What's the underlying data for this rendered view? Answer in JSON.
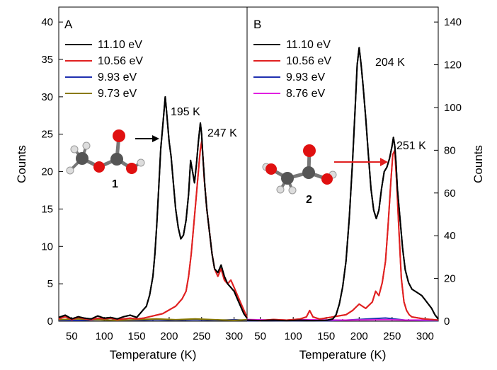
{
  "chart_data": [
    {
      "panel": "A",
      "type": "line",
      "xlabel": "Temperature (K)",
      "ylabel": "Counts",
      "xlim": [
        30,
        320
      ],
      "ylim": [
        0,
        42
      ],
      "xticks": [
        50,
        100,
        150,
        200,
        250,
        300
      ],
      "yticks": [
        0,
        5,
        10,
        15,
        20,
        25,
        30,
        35,
        40
      ],
      "y_axis_side": "left",
      "legend_position": "top-left",
      "series": [
        {
          "name": "11.10 eV",
          "color": "#000000",
          "x": [
            30,
            40,
            50,
            60,
            70,
            80,
            90,
            100,
            110,
            120,
            130,
            140,
            150,
            160,
            165,
            170,
            175,
            178,
            181,
            184,
            187,
            190,
            192,
            194,
            196,
            198,
            200,
            203,
            206,
            210,
            214,
            218,
            222,
            226,
            230,
            233,
            236,
            239,
            242,
            245,
            248,
            250,
            252,
            255,
            258,
            262,
            266,
            270,
            275,
            280,
            285,
            290,
            295,
            300,
            305,
            310,
            315,
            320
          ],
          "y": [
            0.5,
            0.8,
            0.3,
            0.6,
            0.4,
            0.3,
            0.7,
            0.4,
            0.5,
            0.3,
            0.6,
            0.8,
            0.5,
            1.5,
            2.0,
            3.5,
            6.0,
            9.0,
            13.0,
            18.0,
            23.0,
            26.0,
            28.0,
            30.0,
            28.0,
            26.0,
            24.0,
            22.0,
            19.0,
            15.0,
            12.5,
            11.0,
            11.5,
            13.5,
            17.0,
            21.5,
            20.0,
            18.5,
            21.0,
            24.0,
            26.5,
            25.0,
            22.0,
            18.0,
            15.0,
            12.0,
            9.0,
            7.0,
            6.5,
            7.5,
            6.0,
            5.0,
            4.5,
            4.0,
            3.0,
            2.0,
            1.0,
            0.4
          ]
        },
        {
          "name": "10.56 eV",
          "color": "#e02020",
          "x": [
            30,
            40,
            50,
            60,
            70,
            80,
            90,
            100,
            110,
            120,
            130,
            140,
            150,
            160,
            170,
            180,
            190,
            200,
            210,
            220,
            226,
            230,
            234,
            238,
            242,
            246,
            248,
            250,
            252,
            254,
            258,
            262,
            266,
            270,
            275,
            280,
            285,
            290,
            295,
            300,
            305,
            310,
            315,
            320
          ],
          "y": [
            0.3,
            0.6,
            0.2,
            0.5,
            0.3,
            0.2,
            0.4,
            0.3,
            0.4,
            0.2,
            0.3,
            0.4,
            0.3,
            0.4,
            0.6,
            0.8,
            1.0,
            1.5,
            2.0,
            3.0,
            4.0,
            6.0,
            9.0,
            13.0,
            17.0,
            21.0,
            23.0,
            24.0,
            22.0,
            19.0,
            15.0,
            12.0,
            9.0,
            7.0,
            6.0,
            7.0,
            5.5,
            5.0,
            5.5,
            4.5,
            3.5,
            2.5,
            1.5,
            0.5
          ]
        },
        {
          "name": "9.93 eV",
          "color": "#1f2fb0",
          "x": [
            30,
            60,
            90,
            120,
            150,
            180,
            210,
            240,
            270,
            300,
            320
          ],
          "y": [
            0.1,
            0.1,
            0.2,
            0.1,
            0.1,
            0.2,
            0.1,
            0.2,
            0.1,
            0.2,
            0.1
          ]
        },
        {
          "name": "9.73 eV",
          "color": "#8a7a00",
          "x": [
            30,
            60,
            90,
            120,
            150,
            180,
            210,
            240,
            270,
            300,
            320
          ],
          "y": [
            0.2,
            0.3,
            0.2,
            0.1,
            0.2,
            0.3,
            0.2,
            0.3,
            0.2,
            0.1,
            0.2
          ]
        }
      ],
      "annotations": [
        "195 K",
        "247 K"
      ],
      "molecule_label": "1"
    },
    {
      "panel": "B",
      "type": "line",
      "xlabel": "Temperature (K)",
      "ylabel": "Counts",
      "xlim": [
        30,
        320
      ],
      "ylim": [
        0,
        147
      ],
      "xticks": [
        50,
        100,
        150,
        200,
        250,
        300
      ],
      "yticks": [
        0,
        20,
        40,
        60,
        80,
        100,
        120,
        140
      ],
      "y_axis_side": "right",
      "legend_position": "top-left",
      "series": [
        {
          "name": "11.10 eV",
          "color": "#000000",
          "x": [
            30,
            50,
            70,
            90,
            110,
            130,
            150,
            160,
            165,
            170,
            175,
            180,
            185,
            190,
            194,
            197,
            200,
            203,
            206,
            210,
            214,
            218,
            222,
            226,
            230,
            234,
            238,
            242,
            246,
            250,
            252,
            254,
            256,
            258,
            262,
            266,
            270,
            275,
            280,
            285,
            290,
            295,
            300,
            305,
            310,
            315,
            320
          ],
          "y": [
            0.5,
            0.3,
            0.5,
            0.2,
            0.5,
            0.3,
            0.4,
            1.0,
            3.0,
            8.0,
            16.0,
            28.0,
            48.0,
            75.0,
            100.0,
            120.0,
            128.0,
            120.0,
            110.0,
            95.0,
            78.0,
            62.0,
            52.0,
            48.0,
            52.0,
            62.0,
            70.0,
            72.0,
            76.0,
            82.0,
            86.0,
            82.0,
            74.0,
            62.0,
            48.0,
            34.0,
            24.0,
            18.0,
            15.0,
            14.0,
            13.0,
            12.0,
            10.0,
            8.0,
            6.0,
            3.0,
            1.0
          ]
        },
        {
          "name": "10.56 eV",
          "color": "#e02020",
          "x": [
            30,
            50,
            70,
            90,
            110,
            120,
            125,
            130,
            140,
            150,
            160,
            170,
            180,
            190,
            200,
            210,
            220,
            225,
            230,
            235,
            240,
            244,
            248,
            251,
            254,
            257,
            260,
            264,
            268,
            272,
            276,
            280,
            290,
            300,
            310,
            320
          ],
          "y": [
            0.5,
            0.3,
            0.8,
            0.5,
            1.0,
            2.0,
            5.0,
            2.0,
            1.0,
            1.5,
            2.0,
            2.5,
            3.0,
            5.0,
            8.0,
            6.0,
            9.0,
            14.0,
            12.0,
            18.0,
            28.0,
            45.0,
            65.0,
            78.0,
            80.0,
            65.0,
            45.0,
            20.0,
            9.0,
            5.0,
            3.0,
            2.0,
            1.5,
            1.0,
            0.8,
            0.5
          ]
        },
        {
          "name": "9.93 eV",
          "color": "#1f2fb0",
          "x": [
            30,
            60,
            90,
            120,
            150,
            180,
            210,
            240,
            270,
            300,
            320
          ],
          "y": [
            0.2,
            0.3,
            0.2,
            0.3,
            0.2,
            0.5,
            1.0,
            1.5,
            0.5,
            0.3,
            0.2
          ]
        },
        {
          "name": "8.76 eV",
          "color": "#e020e0",
          "x": [
            30,
            60,
            90,
            120,
            150,
            180,
            210,
            240,
            270,
            300,
            320
          ],
          "y": [
            0.8,
            0.6,
            0.5,
            0.7,
            0.6,
            0.5,
            0.6,
            0.7,
            0.5,
            0.6,
            0.5
          ]
        }
      ],
      "annotations": [
        "204 K",
        "251 K"
      ],
      "molecule_label": "2"
    }
  ]
}
